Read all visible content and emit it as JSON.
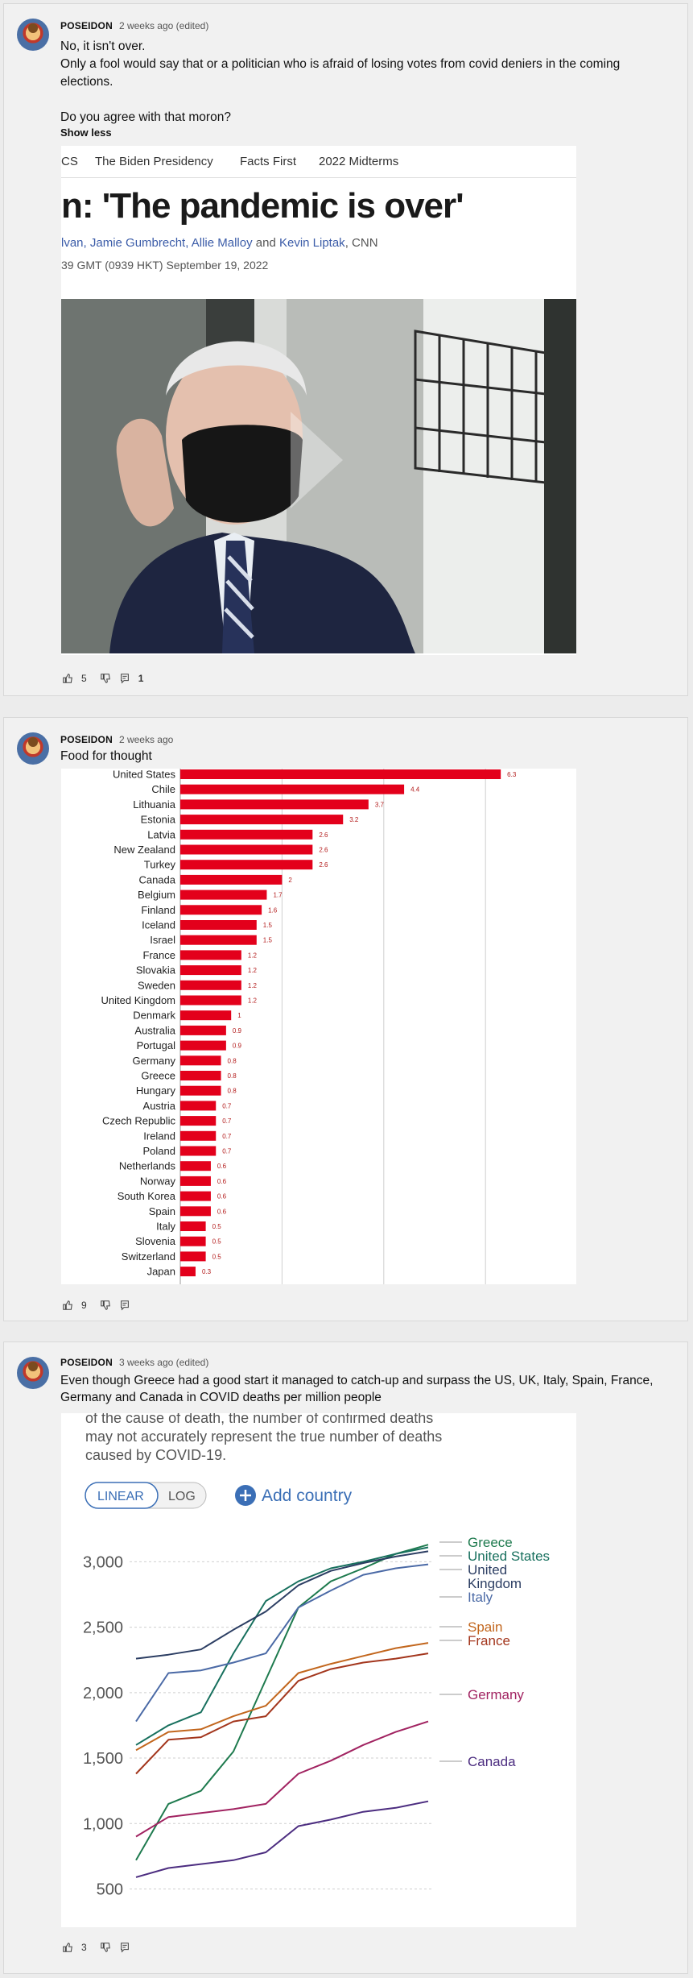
{
  "posts": [
    {
      "author": "POSEIDON",
      "time": "2 weeks ago (edited)",
      "lines": [
        "No, it isn't over.",
        "Only a fool would say that or a politician who is afraid of losing votes from covid deniers in the coming elections.",
        "",
        "Do you agree with that moron?"
      ],
      "show_less": "Show less",
      "likes": "5",
      "replies": "1",
      "article": {
        "nav": [
          "CS",
          "The Biden Presidency",
          "Facts First",
          "2022 Midterms"
        ],
        "headline": "n: 'The pandemic is over'",
        "byline_link1": "lvan, Jamie Gumbrecht, Allie Malloy",
        "byline_and": "and",
        "byline_link2": "Kevin Liptak",
        "byline_src": ", CNN",
        "dateline": "39 GMT (0939 HKT) September 19, 2022"
      }
    },
    {
      "author": "POSEIDON",
      "time": "2 weeks ago",
      "lines": [
        "Food for thought"
      ],
      "likes": "9"
    },
    {
      "author": "POSEIDON",
      "time": "3 weeks ago (edited)",
      "lines": [
        "Even though Greece had a good start it managed to catch-up and surpass the US, UK, Italy, Spain, France,",
        "Germany and Canada in COVID deaths per million people"
      ],
      "likes": "3",
      "chart_top_text": [
        "of the cause of death, the number of confirmed deaths",
        "may not accurately represent the true number of deaths",
        "caused by COVID-19."
      ],
      "toggle": {
        "linear": "LINEAR",
        "log": "LOG"
      },
      "add_country": "Add country"
    }
  ],
  "chart_data": [
    {
      "type": "bar",
      "orientation": "horizontal",
      "categories": [
        "United States",
        "Chile",
        "Lithuania",
        "Estonia",
        "Latvia",
        "New Zealand",
        "Turkey",
        "Canada",
        "Belgium",
        "Finland",
        "Iceland",
        "Israel",
        "France",
        "Slovakia",
        "Sweden",
        "United Kingdom",
        "Denmark",
        "Australia",
        "Portugal",
        "Germany",
        "Greece",
        "Hungary",
        "Austria",
        "Czech Republic",
        "Ireland",
        "Poland",
        "Netherlands",
        "Norway",
        "South Korea",
        "Spain",
        "Italy",
        "Slovenia",
        "Switzerland",
        "Japan"
      ],
      "values": [
        6.3,
        4.4,
        3.7,
        3.2,
        2.6,
        2.6,
        2.6,
        2,
        1.7,
        1.6,
        1.5,
        1.5,
        1.2,
        1.2,
        1.2,
        1.2,
        1,
        0.9,
        0.9,
        0.8,
        0.8,
        0.8,
        0.7,
        0.7,
        0.7,
        0.7,
        0.6,
        0.6,
        0.6,
        0.6,
        0.5,
        0.5,
        0.5,
        0.3
      ],
      "value_labels": [
        "6.3",
        "4.4",
        "3.7",
        "3.2",
        "2.6",
        "2.6",
        "2.6",
        "2",
        "1.7",
        "1.6",
        "1.5",
        "1.5",
        "1.2",
        "1.2",
        "1.2",
        "1.2",
        "1",
        "0.9",
        "0.9",
        "0.8",
        "0.8",
        "0.8",
        "0.7",
        "0.7",
        "0.7",
        "0.7",
        "0.6",
        "0.6",
        "0.6",
        "0.6",
        "0.5",
        "0.5",
        "0.5",
        "0.3"
      ],
      "xlim": [
        0,
        7
      ],
      "grid_x": [
        2,
        4,
        6
      ],
      "color": "#e3001b"
    },
    {
      "type": "line",
      "scale": "linear",
      "yticks": [
        "3,000",
        "2,500",
        "2,000",
        "1,500",
        "1,000",
        "500"
      ],
      "ytick_values": [
        3000,
        2500,
        2000,
        1500,
        1000,
        500
      ],
      "ylim": [
        380,
        3150
      ],
      "series": [
        {
          "name": "Greece",
          "color": "#1e7a4e",
          "values": [
            720,
            1150,
            1250,
            1550,
            2100,
            2650,
            2850,
            2950,
            3060,
            3130
          ]
        },
        {
          "name": "United States",
          "color": "#18705e",
          "values": [
            1600,
            1750,
            1850,
            2300,
            2700,
            2850,
            2950,
            3000,
            3060,
            3110
          ]
        },
        {
          "name": "United Kingdom",
          "color": "#2c3e63",
          "values": [
            2260,
            2290,
            2330,
            2480,
            2620,
            2820,
            2930,
            2990,
            3040,
            3080
          ]
        },
        {
          "name": "Italy",
          "color": "#4b6aa6",
          "values": [
            1780,
            2150,
            2170,
            2230,
            2300,
            2650,
            2780,
            2900,
            2950,
            2980
          ]
        },
        {
          "name": "Spain",
          "color": "#c2661d",
          "values": [
            1560,
            1700,
            1720,
            1820,
            1900,
            2150,
            2220,
            2280,
            2340,
            2380
          ]
        },
        {
          "name": "France",
          "color": "#a3361d",
          "values": [
            1380,
            1640,
            1660,
            1780,
            1820,
            2090,
            2180,
            2230,
            2260,
            2300
          ]
        },
        {
          "name": "Germany",
          "color": "#a12361",
          "values": [
            900,
            1050,
            1080,
            1110,
            1150,
            1380,
            1480,
            1600,
            1700,
            1780
          ]
        },
        {
          "name": "Canada",
          "color": "#4c2d80",
          "values": [
            590,
            660,
            690,
            720,
            780,
            980,
            1030,
            1090,
            1120,
            1170
          ]
        }
      ],
      "legend_labels": [
        {
          "text": "Greece",
          "color": "#1e7a4e"
        },
        {
          "text": "United States",
          "color": "#18705e"
        },
        {
          "text": "United",
          "color": "#2c3e63"
        },
        {
          "text": "Kingdom",
          "color": "#2c3e63"
        },
        {
          "text": "Italy",
          "color": "#4b6aa6"
        },
        {
          "text": "Spain",
          "color": "#c2661d"
        },
        {
          "text": "France",
          "color": "#a3361d"
        },
        {
          "text": "Germany",
          "color": "#a12361"
        },
        {
          "text": "Canada",
          "color": "#4c2d80"
        }
      ]
    }
  ]
}
